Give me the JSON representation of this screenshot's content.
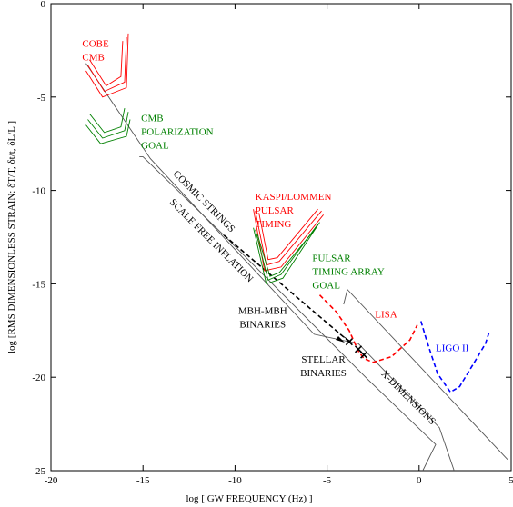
{
  "chart_data": {
    "type": "line",
    "xlabel": "log [ GW FREQUENCY (Hz) ]",
    "ylabel": "log [RMS  DIMENSIONLESS STRAIN: δT/T, δt/t,  δL/L ]",
    "xlim": [
      -20,
      5
    ],
    "ylim": [
      -25,
      0
    ],
    "xticks": [
      "-20",
      "-15",
      "-10",
      "-5",
      "0",
      "5"
    ],
    "yticks": [
      "0",
      "-5",
      "-10",
      "-15",
      "-20",
      "-25"
    ],
    "colors": {
      "red": "#ff0000",
      "green": "#008000",
      "blue": "#0000ff",
      "black": "#000000",
      "gray": "#555555"
    },
    "series": [
      {
        "color": "gray",
        "dash": false,
        "points": [
          [
            -18.1,
            -3.2
          ],
          [
            -14.6,
            -8.3
          ],
          [
            -5.7,
            -17.7
          ],
          [
            -3.3,
            -18.2
          ],
          [
            1.1,
            -22.7
          ],
          [
            1.9,
            -25
          ]
        ]
      },
      {
        "color": "gray",
        "dash": false,
        "points": [
          [
            -15.2,
            -8.2
          ],
          [
            -15.0,
            -8.2
          ],
          [
            -10.5,
            -12.5
          ],
          [
            -2.8,
            -20.1
          ],
          [
            0.9,
            -23.6
          ],
          [
            0.2,
            -25
          ]
        ]
      },
      {
        "color": "gray",
        "dash": false,
        "points": [
          [
            -4.1,
            -16.1
          ],
          [
            -3.9,
            -15.3
          ],
          [
            4.8,
            -24.4
          ]
        ]
      },
      {
        "color": "black",
        "dash": true,
        "points": [
          [
            -10.6,
            -12.4
          ],
          [
            -3.8,
            -18.1
          ]
        ]
      },
      {
        "color": "black",
        "dash": false,
        "points": [
          [
            -4.3,
            -17.7
          ],
          [
            -3.7,
            -18.1
          ]
        ]
      },
      {
        "color": "red",
        "dash": false,
        "points": [
          [
            -18.0,
            -3.3
          ],
          [
            -17.1,
            -4.7
          ],
          [
            -16.0,
            -4.2
          ],
          [
            -15.9,
            -1.8
          ]
        ]
      },
      {
        "color": "red",
        "dash": false,
        "points": [
          [
            -17.9,
            -3.0
          ],
          [
            -17.0,
            -4.4
          ],
          [
            -16.2,
            -3.9
          ],
          [
            -16.1,
            -2.0
          ]
        ]
      },
      {
        "color": "red",
        "dash": false,
        "points": [
          [
            -18.1,
            -3.6
          ],
          [
            -17.2,
            -5.0
          ],
          [
            -15.9,
            -4.5
          ],
          [
            -15.8,
            -1.6
          ]
        ]
      },
      {
        "color": "green",
        "dash": false,
        "points": [
          [
            -18.0,
            -6.2
          ],
          [
            -17.2,
            -7.2
          ],
          [
            -16.0,
            -6.8
          ],
          [
            -15.8,
            -5.8
          ]
        ]
      },
      {
        "color": "green",
        "dash": false,
        "points": [
          [
            -17.9,
            -5.9
          ],
          [
            -17.1,
            -6.9
          ],
          [
            -16.2,
            -6.6
          ],
          [
            -16.0,
            -5.6
          ]
        ]
      },
      {
        "color": "green",
        "dash": false,
        "points": [
          [
            -18.1,
            -6.5
          ],
          [
            -17.3,
            -7.5
          ],
          [
            -15.9,
            -7.1
          ],
          [
            -15.7,
            -6.2
          ]
        ]
      },
      {
        "color": "red",
        "dash": false,
        "points": [
          [
            -8.9,
            -11.1
          ],
          [
            -8.3,
            -14.0
          ],
          [
            -7.6,
            -13.8
          ],
          [
            -5.3,
            -11.1
          ]
        ]
      },
      {
        "color": "red",
        "dash": false,
        "points": [
          [
            -8.7,
            -11.2
          ],
          [
            -8.2,
            -13.7
          ],
          [
            -7.7,
            -13.6
          ],
          [
            -5.5,
            -11.0
          ]
        ]
      },
      {
        "color": "red",
        "dash": false,
        "points": [
          [
            -9.0,
            -11.0
          ],
          [
            -8.4,
            -14.3
          ],
          [
            -7.5,
            -14.1
          ],
          [
            -5.2,
            -11.3
          ]
        ]
      },
      {
        "color": "green",
        "dash": false,
        "points": [
          [
            -8.9,
            -12.1
          ],
          [
            -8.2,
            -14.8
          ],
          [
            -7.5,
            -14.5
          ],
          [
            -5.5,
            -11.8
          ]
        ]
      },
      {
        "color": "green",
        "dash": false,
        "points": [
          [
            -8.8,
            -12.3
          ],
          [
            -8.1,
            -14.6
          ],
          [
            -7.6,
            -14.4
          ],
          [
            -5.6,
            -12.0
          ]
        ]
      },
      {
        "color": "green",
        "dash": false,
        "points": [
          [
            -9.0,
            -12.0
          ],
          [
            -8.3,
            -15.0
          ],
          [
            -7.4,
            -14.7
          ],
          [
            -5.4,
            -11.7
          ]
        ]
      },
      {
        "color": "red",
        "dash": true,
        "points": [
          [
            -5.4,
            -15.6
          ],
          [
            -4.5,
            -16.5
          ],
          [
            -3.8,
            -17.5
          ],
          [
            -3.3,
            -18.6
          ],
          [
            -3.0,
            -19.0
          ],
          [
            -2.5,
            -19.2
          ],
          [
            -1.5,
            -18.9
          ],
          [
            -0.5,
            -18.0
          ],
          [
            -0.1,
            -17.2
          ]
        ]
      },
      {
        "color": "blue",
        "dash": true,
        "points": [
          [
            0.1,
            -17.0
          ],
          [
            0.4,
            -18.0
          ],
          [
            1.0,
            -19.8
          ],
          [
            1.7,
            -20.8
          ],
          [
            2.2,
            -20.5
          ],
          [
            3.0,
            -19.2
          ],
          [
            3.6,
            -18.2
          ],
          [
            3.8,
            -17.6
          ]
        ]
      }
    ],
    "markers": [
      [
        -3.8,
        -18.1
      ],
      [
        -3.3,
        -18.5
      ],
      [
        -3.0,
        -18.8
      ]
    ],
    "labels": [
      {
        "lines": [
          "COBE",
          "CMB"
        ],
        "color": "red",
        "x": -18.3,
        "y": -2.3,
        "anchor": "start",
        "rotate": 0
      },
      {
        "lines": [
          "CMB",
          "POLARIZATION",
          "GOAL"
        ],
        "color": "green",
        "x": -15.1,
        "y": -6.3,
        "anchor": "start",
        "rotate": 0
      },
      {
        "lines": [
          "KASPI/LOMMEN",
          "PULSAR",
          "TIMING"
        ],
        "color": "red",
        "x": -8.9,
        "y": -10.5,
        "anchor": "start",
        "rotate": 0
      },
      {
        "lines": [
          "PULSAR",
          "TIMING  ARRAY",
          "GOAL"
        ],
        "color": "green",
        "x": -5.8,
        "y": -13.8,
        "anchor": "start",
        "rotate": 0
      },
      {
        "lines": [
          "LISA"
        ],
        "color": "red",
        "x": -2.4,
        "y": -16.8,
        "anchor": "start",
        "rotate": 0
      },
      {
        "lines": [
          "LIGO II"
        ],
        "color": "blue",
        "x": 0.9,
        "y": -18.6,
        "anchor": "start",
        "rotate": 0
      },
      {
        "lines": [
          "MBH-MBH",
          "BINARIES"
        ],
        "color": "black",
        "x": -8.5,
        "y": -16.6,
        "anchor": "middle",
        "rotate": 0
      },
      {
        "lines": [
          "STELLAR",
          "BINARIES"
        ],
        "color": "black",
        "x": -5.2,
        "y": -19.2,
        "anchor": "middle",
        "rotate": 0
      },
      {
        "lines": [
          "COSMIC STRINGS"
        ],
        "color": "black",
        "x": -11.8,
        "y": -10.7,
        "anchor": "middle",
        "rotate": 45
      },
      {
        "lines": [
          "SCALE FREE INFLATION"
        ],
        "color": "black",
        "x": -11.4,
        "y": -12.8,
        "anchor": "middle",
        "rotate": 45
      },
      {
        "lines": [
          "X-DIMENSIONS"
        ],
        "color": "black",
        "x": -0.7,
        "y": -21.2,
        "anchor": "middle",
        "rotate": 45
      }
    ]
  }
}
